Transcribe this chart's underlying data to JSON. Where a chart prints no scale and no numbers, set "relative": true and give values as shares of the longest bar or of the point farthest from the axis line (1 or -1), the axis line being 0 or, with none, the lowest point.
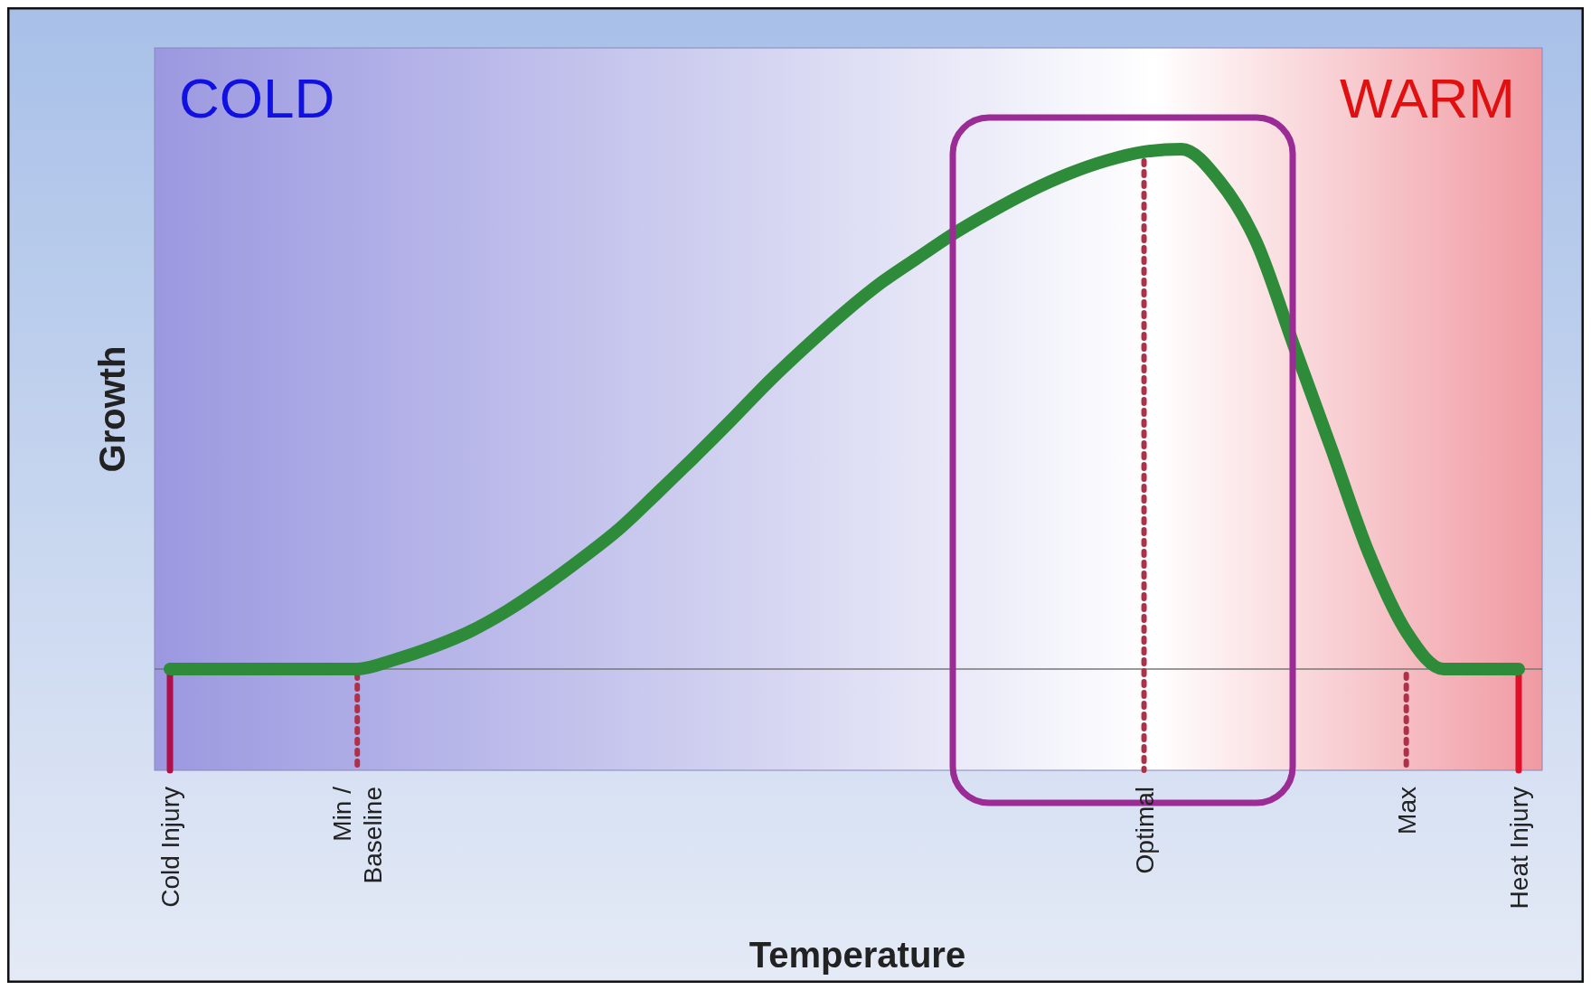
{
  "chart_data": {
    "type": "line",
    "relative": true,
    "xlabel": "Temperature",
    "ylabel": "Growth",
    "grid": false,
    "tick_labels": "x",
    "categories": [
      "Cold Injury",
      null,
      null,
      null,
      null,
      "Min / Baseline",
      null,
      null,
      null,
      null,
      null,
      null,
      null,
      null,
      null,
      null,
      null,
      null,
      null,
      null,
      null,
      null,
      null,
      null,
      null,
      null,
      "Optimal",
      null,
      null,
      null,
      null,
      null,
      null,
      "Max",
      null,
      null,
      "Heat Injury"
    ],
    "series": [
      {
        "color": "#2e8b3a",
        "values": [
          0,
          0,
          0,
          0,
          0,
          0,
          0.018,
          0.042,
          0.072,
          0.112,
          0.16,
          0.213,
          0.27,
          0.338,
          0.408,
          0.48,
          0.554,
          0.622,
          0.686,
          0.744,
          0.793,
          0.841,
          0.883,
          0.921,
          0.953,
          0.978,
          0.995,
          1,
          0.94,
          0.821,
          0.622,
          0.424,
          0.223,
          0.072,
          0,
          0,
          0
        ]
      }
    ],
    "annotations": [
      "COLD",
      "WARM"
    ]
  }
}
